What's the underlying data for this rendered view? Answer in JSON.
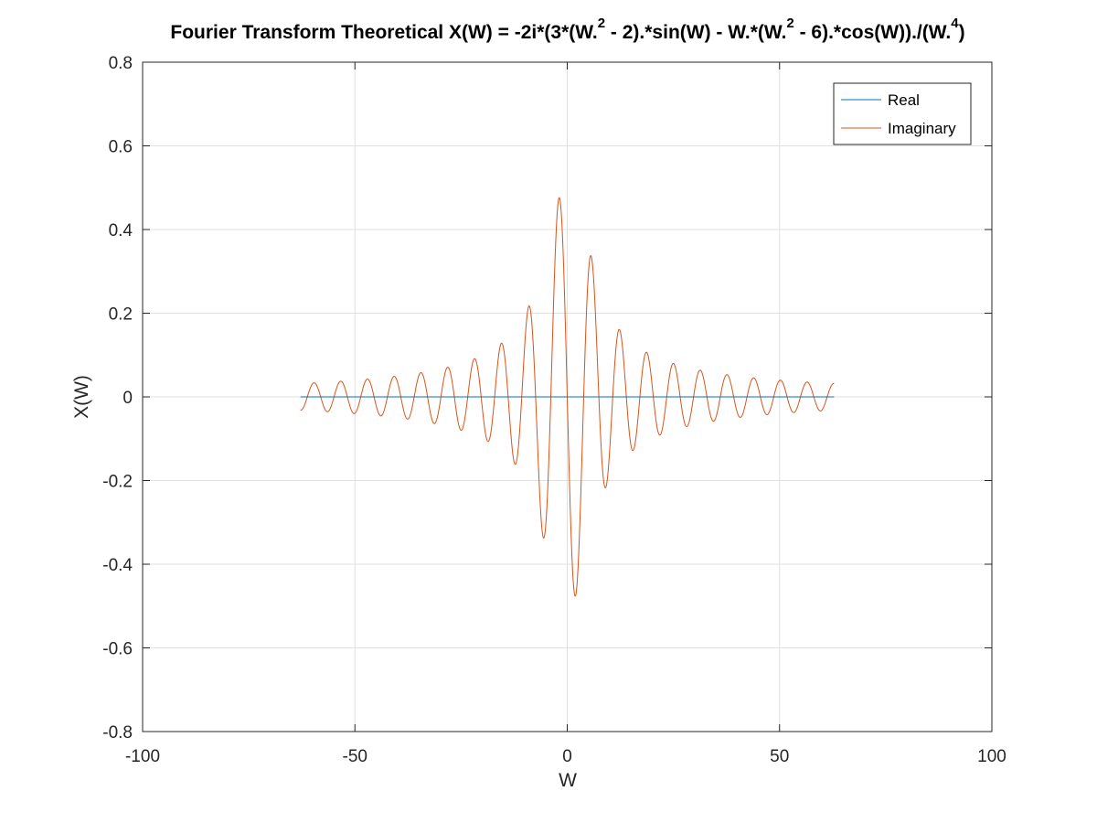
{
  "chart_data": {
    "type": "line",
    "title_parts": {
      "p1": "Fourier Transform Theoretical X(W) = -2i*(3*(W.",
      "sup1": "2",
      "p2": " - 2).*sin(W) - W.*(W.",
      "sup2": "2",
      "p3": " - 6).*cos(W))./(W.",
      "sup3": "4",
      "p4": ")"
    },
    "xlabel": "W",
    "ylabel": "X(W)",
    "xlim": [
      -100,
      100
    ],
    "ylim": [
      -0.8,
      0.8
    ],
    "xticks": [
      -100,
      -50,
      0,
      50,
      100
    ],
    "yticks": [
      -0.8,
      -0.6,
      -0.4,
      -0.2,
      0,
      0.2,
      0.4,
      0.6,
      0.8
    ],
    "xtick_labels": [
      "-100",
      "-50",
      "0",
      "50",
      "100"
    ],
    "ytick_labels": [
      "-0.8",
      "-0.6",
      "-0.4",
      "-0.2",
      "0",
      "0.2",
      "0.4",
      "0.6",
      "0.8"
    ],
    "grid": true,
    "legend_position": "top-right",
    "function": "-2i*(3*(W.^2 - 2).*sin(W) - W.*(W.^2 - 6).*cos(W))./(W.^4)",
    "x_range": [
      -62.83,
      62.83
    ],
    "series": [
      {
        "name": "Real",
        "color": "#0072BD",
        "component": "real"
      },
      {
        "name": "Imaginary",
        "color": "#D95319",
        "component": "imaginary"
      }
    ]
  }
}
